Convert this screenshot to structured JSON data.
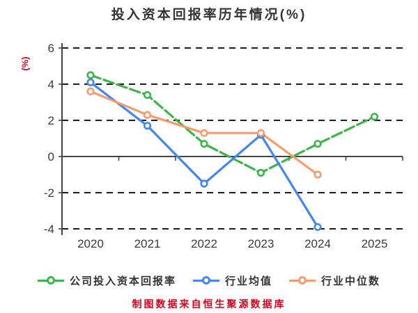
{
  "title": "投入资本回报率历年情况(%)",
  "footer_note": "制图数据来自恒生聚源数据库",
  "colors": {
    "title_text": "#333333",
    "axis_text": "#3a3a3a",
    "axis_line": "#444444",
    "gridline": "#1a1a1a",
    "accent_red": "#d9001b",
    "series_company": "#3cb44a",
    "series_industry_mean": "#4285f4",
    "series_industry_median": "#f59b70",
    "marker_fill": "#ffffff"
  },
  "chart_data": {
    "type": "line",
    "title": "投入资本回报率历年情况(%)",
    "xlabel": "",
    "ylabel": "(%)",
    "categories": [
      "2020",
      "2021",
      "2022",
      "2023",
      "2024",
      "2025"
    ],
    "series": [
      {
        "name": "公司投入资本回报率",
        "color": "#3cb44a",
        "line_style": "dashed",
        "values": [
          4.5,
          3.4,
          0.7,
          -0.9,
          0.7,
          2.2
        ]
      },
      {
        "name": "行业均值",
        "color": "#4285f4",
        "line_style": "solid",
        "values": [
          4.1,
          1.7,
          -1.5,
          1.2,
          -3.9,
          null
        ]
      },
      {
        "name": "行业中位数",
        "color": "#f59b70",
        "line_style": "solid",
        "values": [
          3.6,
          2.3,
          1.3,
          1.3,
          -1.0,
          null
        ]
      }
    ],
    "ylim": [
      -4,
      6
    ],
    "yticks": [
      "6",
      "4",
      "2",
      "0",
      "-2",
      "-4"
    ],
    "ytick_values": [
      6,
      4,
      2,
      0,
      -2,
      -4
    ],
    "grid": "horizontal dashed, zero axis solid",
    "legend_position": "bottom",
    "marker": "circle, white fill, colored ring"
  }
}
